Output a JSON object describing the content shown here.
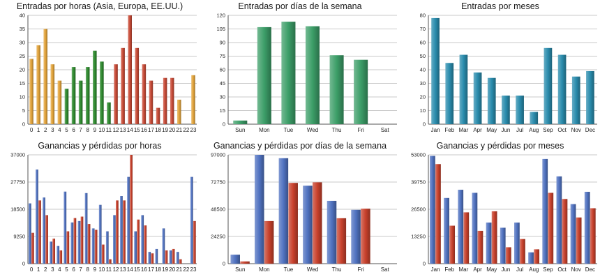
{
  "chart_data": [
    {
      "id": "hours-entries",
      "type": "bar",
      "title": "Entradas por horas (Asia, Europa, EE.UU.)",
      "ylim": [
        0,
        40
      ],
      "yticks": [
        0,
        5,
        10,
        15,
        20,
        25,
        30,
        35,
        40
      ],
      "grid": true,
      "categories": [
        "0",
        "1",
        "2",
        "3",
        "4",
        "5",
        "6",
        "7",
        "8",
        "9",
        "10",
        "11",
        "12",
        "13",
        "14",
        "15",
        "16",
        "17",
        "18",
        "19",
        "20",
        "21",
        "22",
        "23"
      ],
      "series": [
        {
          "values": [
            24,
            29,
            35,
            22,
            16,
            13,
            21,
            16,
            21,
            27,
            23,
            8,
            22,
            28,
            40,
            28,
            22,
            16,
            6,
            17,
            17,
            9,
            0,
            18
          ],
          "colors": [
            "#e2a33a",
            "#e2a33a",
            "#e2a33a",
            "#e2a33a",
            "#e2a33a",
            "#2f8a2f",
            "#2f8a2f",
            "#2f8a2f",
            "#2f8a2f",
            "#2f8a2f",
            "#2f8a2f",
            "#2f8a2f",
            "#c84a36",
            "#c84a36",
            "#c84a36",
            "#c84a36",
            "#c84a36",
            "#c84a36",
            "#c84a36",
            "#c84a36",
            "#c84a36",
            "#e2a33a",
            "#e2a33a",
            "#e2a33a"
          ]
        }
      ]
    },
    {
      "id": "weekday-entries",
      "type": "bar",
      "title": "Entradas por días de la semana",
      "ylim": [
        0,
        120
      ],
      "yticks": [
        0,
        15,
        30,
        45,
        60,
        75,
        90,
        105,
        120
      ],
      "grid": true,
      "categories": [
        "Sun",
        "Mon",
        "Tue",
        "Wed",
        "Thu",
        "Fri",
        "Sat"
      ],
      "series": [
        {
          "values": [
            4,
            107,
            113,
            108,
            76,
            71,
            0
          ],
          "color": "#3c9e68"
        }
      ]
    },
    {
      "id": "month-entries",
      "type": "bar",
      "title": "Entradas por meses",
      "ylim": [
        0,
        80
      ],
      "yticks": [
        0,
        10,
        20,
        30,
        40,
        50,
        60,
        70,
        80
      ],
      "grid": true,
      "categories": [
        "Jan",
        "Feb",
        "Mar",
        "Apr",
        "May",
        "Jun",
        "Jul",
        "Aug",
        "Sep",
        "Oct",
        "Nov",
        "Dec"
      ],
      "series": [
        {
          "values": [
            78,
            45,
            51,
            38,
            34,
            21,
            21,
            9,
            56,
            51,
            35,
            39
          ],
          "color": "#2a8cad"
        }
      ]
    },
    {
      "id": "hours-profit",
      "type": "bar",
      "title": "Ganancias y pérdidas por horas",
      "ylim": [
        0,
        37000
      ],
      "yticks": [
        0,
        9250,
        18500,
        27750,
        37000
      ],
      "grid": true,
      "categories": [
        "0",
        "1",
        "2",
        "3",
        "4",
        "5",
        "6",
        "7",
        "8",
        "9",
        "10",
        "11",
        "12",
        "13",
        "14",
        "15",
        "16",
        "17",
        "18",
        "19",
        "20",
        "21",
        "22",
        "23"
      ],
      "series": [
        {
          "values": [
            20500,
            32000,
            22500,
            7500,
            6000,
            24500,
            14000,
            14500,
            24000,
            12000,
            20000,
            11000,
            16500,
            23000,
            29500,
            11000,
            16500,
            4000,
            5000,
            12000,
            4500,
            4000,
            0,
            29500
          ],
          "color": "#5072c0"
        },
        {
          "values": [
            10500,
            21500,
            16500,
            8500,
            4500,
            11000,
            15500,
            16000,
            13500,
            11500,
            6500,
            1500,
            21500,
            21500,
            37000,
            15000,
            13000,
            3500,
            0,
            4500,
            5000,
            1500,
            0,
            14500
          ],
          "color": "#c8412c"
        }
      ]
    },
    {
      "id": "weekday-profit",
      "type": "bar",
      "title": "Ganancias y pérdidas por días de la semana",
      "ylim": [
        0,
        97000
      ],
      "yticks": [
        0,
        24250,
        48500,
        72750,
        97000
      ],
      "grid": true,
      "categories": [
        "Sun",
        "Mon",
        "Tue",
        "Wed",
        "Thu",
        "Fri",
        "Sat"
      ],
      "series": [
        {
          "values": [
            8000,
            97000,
            94000,
            69500,
            56000,
            48000,
            0
          ],
          "color": "#5072c0"
        },
        {
          "values": [
            2000,
            38000,
            72000,
            72500,
            40500,
            49000,
            0
          ],
          "color": "#c8412c"
        }
      ]
    },
    {
      "id": "month-profit",
      "type": "bar",
      "title": "Ganancias y pérdidas por meses",
      "ylim": [
        0,
        53000
      ],
      "yticks": [
        0,
        13250,
        26500,
        39750,
        53000
      ],
      "grid": true,
      "categories": [
        "Jan",
        "Feb",
        "Mar",
        "Apr",
        "May",
        "Jun",
        "Jul",
        "Aug",
        "Sep",
        "Oct",
        "Nov",
        "Dec"
      ],
      "series": [
        {
          "values": [
            52500,
            32000,
            36000,
            34500,
            20000,
            17500,
            20000,
            5500,
            51000,
            42500,
            29000,
            35000
          ],
          "color": "#5072c0"
        },
        {
          "values": [
            48500,
            18500,
            25000,
            16000,
            25500,
            8000,
            12000,
            7000,
            34500,
            31500,
            22500,
            27000
          ],
          "color": "#c8412c"
        }
      ]
    }
  ]
}
